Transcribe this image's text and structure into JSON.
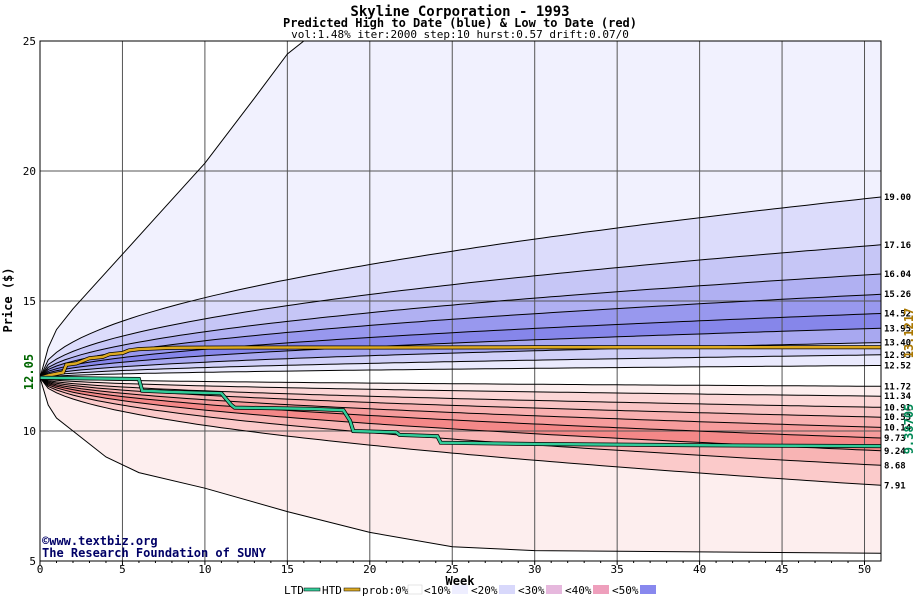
{
  "chart_data": {
    "type": "area",
    "title": "Skyline Corporation - 1993",
    "subtitle": "Predicted High to Date (blue) &  Low to Date (red)",
    "params": "vol:1.48% iter:2000 step:10 hurst:0.57 drift:0.07/0",
    "xlabel": "Week",
    "ylabel": "Price ($)",
    "xlim": [
      0,
      51
    ],
    "ylim": [
      5,
      25
    ],
    "x_ticks": [
      0,
      5,
      10,
      15,
      20,
      25,
      30,
      35,
      40,
      45,
      50
    ],
    "y_ticks": [
      5,
      10,
      15,
      20,
      25
    ],
    "grid": true,
    "start_price": 12.05,
    "start_label": "12.05",
    "htd_final_label": "13.1217",
    "ltd_final_label": "9.38705",
    "upper_bands": [
      {
        "label": "19.00",
        "end": 19.0,
        "k": 3.1
      },
      {
        "label": "17.16",
        "end": 17.16,
        "k": 1.6
      },
      {
        "label": "16.04",
        "end": 16.04,
        "k": 1.3
      },
      {
        "label": "15.26",
        "end": 15.26,
        "k": 1.15
      },
      {
        "label": "14.52",
        "end": 14.52,
        "k": 1.05
      },
      {
        "label": "13.95",
        "end": 13.95,
        "k": 1.0
      },
      {
        "label": "13.40",
        "end": 13.4,
        "k": 1.0
      },
      {
        "label": "12.93",
        "end": 12.93,
        "k": 1.0
      },
      {
        "label": "12.52",
        "end": 12.52,
        "k": 1.0
      }
    ],
    "lower_bands": [
      {
        "label": "11.72",
        "end": 11.72,
        "k": 1.0
      },
      {
        "label": "11.34",
        "end": 11.34,
        "k": 1.0
      },
      {
        "label": "10.91",
        "end": 10.91,
        "k": 1.0
      },
      {
        "label": "10.53",
        "end": 10.53,
        "k": 1.0
      },
      {
        "label": "10.14",
        "end": 10.14,
        "k": 1.05
      },
      {
        "label": "9.73",
        "end": 9.73,
        "k": 1.1
      },
      {
        "label": "9.24",
        "end": 9.24,
        "k": 1.2
      },
      {
        "label": "8.68",
        "end": 8.68,
        "k": 1.35
      },
      {
        "label": "7.91",
        "end": 7.91,
        "k": 1.9
      }
    ],
    "outer_upper": [
      [
        0,
        12.05
      ],
      [
        0.5,
        13.2
      ],
      [
        1,
        13.9
      ],
      [
        2,
        14.7
      ],
      [
        3,
        15.4
      ],
      [
        5,
        16.8
      ],
      [
        7,
        18.2
      ],
      [
        10,
        20.3
      ],
      [
        13,
        22.8
      ],
      [
        15,
        24.5
      ],
      [
        16,
        25
      ]
    ],
    "outer_lower": [
      [
        0,
        12.05
      ],
      [
        0.5,
        11.0
      ],
      [
        1,
        10.5
      ],
      [
        2,
        10.0
      ],
      [
        4,
        9.0
      ],
      [
        6,
        8.4
      ],
      [
        10,
        7.8
      ],
      [
        15,
        6.9
      ],
      [
        20,
        6.1
      ],
      [
        25,
        5.55
      ],
      [
        30,
        5.4
      ],
      [
        40,
        5.35
      ],
      [
        51,
        5.3
      ]
    ],
    "htd_line": [
      [
        0,
        12.05
      ],
      [
        0.6,
        12.15
      ],
      [
        1.4,
        12.25
      ],
      [
        1.6,
        12.55
      ],
      [
        2.2,
        12.6
      ],
      [
        3,
        12.8
      ],
      [
        3.8,
        12.85
      ],
      [
        4.2,
        12.95
      ],
      [
        5,
        13.0
      ],
      [
        5.4,
        13.1
      ],
      [
        6,
        13.15
      ],
      [
        8,
        13.2
      ],
      [
        12,
        13.21
      ],
      [
        20,
        13.21
      ],
      [
        30,
        13.22
      ],
      [
        51,
        13.22
      ]
    ],
    "ltd_line": [
      [
        0,
        12.05
      ],
      [
        6,
        12.0
      ],
      [
        6.2,
        11.55
      ],
      [
        8,
        11.5
      ],
      [
        11,
        11.45
      ],
      [
        11.6,
        11.0
      ],
      [
        11.8,
        10.9
      ],
      [
        16.5,
        10.85
      ],
      [
        18.4,
        10.8
      ],
      [
        18.8,
        10.4
      ],
      [
        19,
        10.0
      ],
      [
        21.6,
        9.95
      ],
      [
        21.8,
        9.85
      ],
      [
        24.1,
        9.8
      ],
      [
        24.3,
        9.55
      ],
      [
        30,
        9.5
      ],
      [
        40,
        9.45
      ],
      [
        51,
        9.42
      ]
    ],
    "legend": {
      "ltd": "LTD",
      "htd": "HTD",
      "prob": "prob:0%",
      "bins": [
        "<10%",
        "<20%",
        "<30%",
        "<40%",
        "<50%"
      ],
      "colors": {
        "ltd": "#33cc99",
        "htd": "#ddaa22",
        "b0": "#ffffff",
        "b10": "#eeeeff",
        "b20": "#d8d8fb",
        "b30": "#e6b8dd",
        "b40": "#ee9fbc",
        "b50": "#8888ee"
      }
    },
    "blue_fills": [
      "#f1f1fe",
      "#dcdcfb",
      "#c6c6f6",
      "#b0b0f2",
      "#9898ee",
      "#8686ea",
      "#a8a8f0",
      "#d0d0f8",
      "#eaeafd"
    ],
    "red_fills": [
      "#fdeeee",
      "#fcd6d6",
      "#f9c4c4",
      "#f8b0b0",
      "#f69c9c",
      "#f48888",
      "#f8b4b4",
      "#fbcaca",
      "#fde0e0"
    ],
    "watermark_1": "www.textbiz.org",
    "watermark_2": "The Research Foundation of SUNY"
  }
}
